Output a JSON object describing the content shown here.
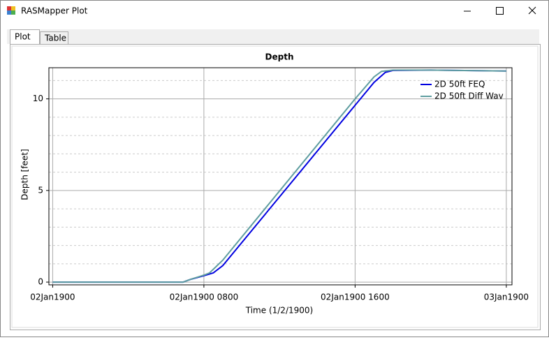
{
  "window": {
    "title": "RASMapper Plot"
  },
  "tabs": [
    "Plot",
    "Table"
  ],
  "chart_data": {
    "type": "line",
    "title": "Depth",
    "x_label": "Time (1/2/1900)",
    "y_label": "Depth [feet]",
    "xlim": [
      -0.2,
      24.3
    ],
    "ylim": [
      -0.15,
      11.7
    ],
    "xticks": [
      {
        "value": 0,
        "label": "02Jan1900"
      },
      {
        "value": 8,
        "label": "02Jan1900 0800"
      },
      {
        "value": 16,
        "label": "02Jan1900 1600"
      },
      {
        "value": 24,
        "label": "03Jan1900"
      }
    ],
    "yticks": [
      0,
      5,
      10
    ],
    "y_minor_grid": [
      1,
      2,
      3,
      4,
      6,
      7,
      8,
      9,
      11
    ],
    "grid": true,
    "legend": "upper right",
    "series": [
      {
        "name": "2D 50ft FEQ",
        "color": "#0000e0",
        "x": [
          0,
          6.9,
          7.3,
          8,
          8.5,
          9,
          16,
          17,
          17.6,
          18,
          20,
          24
        ],
        "values": [
          0,
          0,
          0.15,
          0.35,
          0.5,
          0.9,
          9.65,
          10.9,
          11.45,
          11.55,
          11.57,
          11.52
        ]
      },
      {
        "name": "2D 50ft Diff Wav",
        "color": "#5f9ea0",
        "x": [
          0,
          6.9,
          7.3,
          8,
          8.3,
          9,
          16,
          17,
          17.4,
          18,
          20,
          24
        ],
        "values": [
          0,
          0,
          0.15,
          0.38,
          0.5,
          1.2,
          10.0,
          11.2,
          11.5,
          11.57,
          11.57,
          11.52
        ]
      }
    ]
  }
}
